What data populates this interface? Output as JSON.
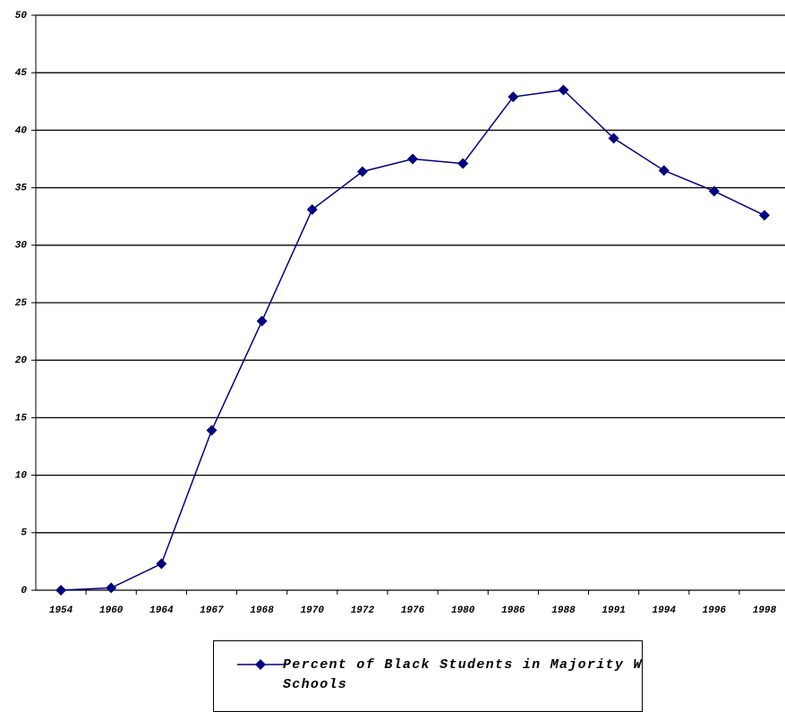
{
  "chart_data": {
    "type": "line",
    "categories": [
      "1954",
      "1960",
      "1964",
      "1967",
      "1968",
      "1970",
      "1972",
      "1976",
      "1980",
      "1986",
      "1988",
      "1991",
      "1994",
      "1996",
      "1998"
    ],
    "series": [
      {
        "name": "Percent of Black Students in Majority White Schools",
        "color": "#000080",
        "values": [
          0,
          0.2,
          2.3,
          13.9,
          23.4,
          33.1,
          36.4,
          37.5,
          37.1,
          42.9,
          43.5,
          39.3,
          36.5,
          34.7,
          32.6
        ]
      }
    ],
    "ylim": [
      0,
      50
    ],
    "yticks": [
      0,
      5,
      10,
      15,
      20,
      25,
      30,
      35,
      40,
      45,
      50
    ],
    "grid": true,
    "legend": "bottom"
  }
}
